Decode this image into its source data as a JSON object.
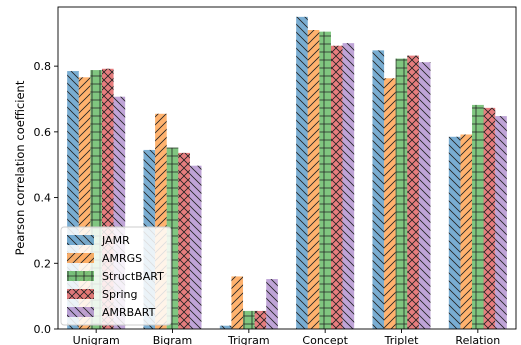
{
  "chart_data": {
    "type": "bar",
    "title": "",
    "xlabel": "",
    "ylabel": "Pearson correlation coefficient",
    "ylim": [
      0,
      0.98
    ],
    "yticks": [
      0.0,
      0.2,
      0.4,
      0.6,
      0.8
    ],
    "ytick_labels": [
      "0.0",
      "0.2",
      "0.4",
      "0.6",
      "0.8"
    ],
    "categories": [
      "Unigram",
      "Bigram",
      "Trigram",
      "Concept",
      "Triplet",
      "Relation"
    ],
    "legend_position": "lower-left",
    "grid": false,
    "series": [
      {
        "name": "JAMR",
        "color": "#1f77b4",
        "hatch": "backslash",
        "values": [
          0.785,
          0.545,
          0.01,
          0.95,
          0.848,
          0.585
        ]
      },
      {
        "name": "AMRGS",
        "color": "#ff7f0e",
        "hatch": "slash",
        "values": [
          0.766,
          0.655,
          0.16,
          0.91,
          0.763,
          0.592
        ]
      },
      {
        "name": "StructBART",
        "color": "#2ca02c",
        "hatch": "grid",
        "values": [
          0.788,
          0.552,
          0.055,
          0.905,
          0.823,
          0.682
        ]
      },
      {
        "name": "Spring",
        "color": "#d62728",
        "hatch": "cross",
        "values": [
          0.792,
          0.536,
          0.055,
          0.862,
          0.832,
          0.673
        ]
      },
      {
        "name": "AMRBART",
        "color": "#9467bd",
        "hatch": "backslash",
        "values": [
          0.707,
          0.497,
          0.152,
          0.87,
          0.812,
          0.648
        ]
      }
    ]
  }
}
